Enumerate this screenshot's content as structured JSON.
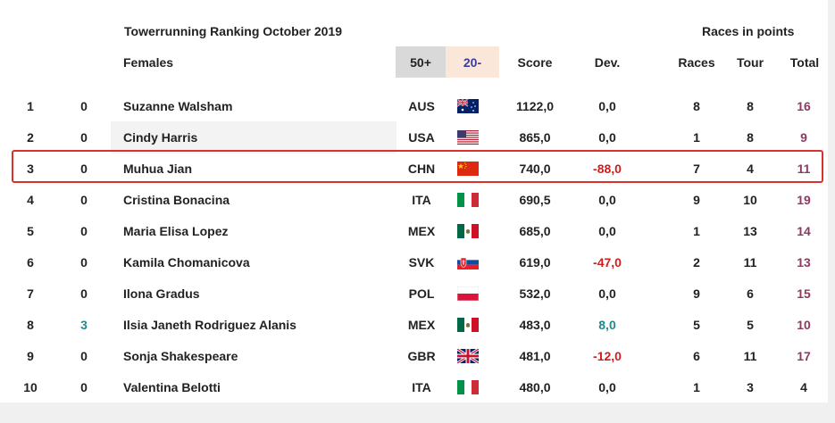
{
  "header": {
    "title": "Towerrunning Ranking October 2019",
    "races_in_points": "Races in points",
    "category": "Females",
    "col_50": "50+",
    "col_20": "20-",
    "col_score": "Score",
    "col_dev": "Dev.",
    "col_races": "Races",
    "col_tour": "Tour",
    "col_total": "Total"
  },
  "colors": {
    "accent_red": "#d31d1d",
    "teal": "#1f8a8a",
    "total_purple": "#8b3a62",
    "highlight_border": "#d9312b"
  },
  "rows": [
    {
      "rank": "1",
      "change": "0",
      "name": "Suzanne Walsham",
      "country": "AUS",
      "flag": "flag-aus",
      "score": "1122,0",
      "dev": "0,0",
      "races": "8",
      "tour": "8",
      "total": "16"
    },
    {
      "rank": "2",
      "change": "0",
      "name": "Cindy Harris",
      "country": "USA",
      "flag": "flag-usa",
      "score": "865,0",
      "dev": "0,0",
      "races": "1",
      "tour": "8",
      "total": "9"
    },
    {
      "rank": "3",
      "change": "0",
      "name": "Muhua Jian",
      "country": "CHN",
      "flag": "flag-chn",
      "score": "740,0",
      "dev": "-88,0",
      "races": "7",
      "tour": "4",
      "total": "11"
    },
    {
      "rank": "4",
      "change": "0",
      "name": "Cristina Bonacina",
      "country": "ITA",
      "flag": "flag-ita",
      "score": "690,5",
      "dev": "0,0",
      "races": "9",
      "tour": "10",
      "total": "19"
    },
    {
      "rank": "5",
      "change": "0",
      "name": "Maria Elisa Lopez",
      "country": "MEX",
      "flag": "flag-mex",
      "score": "685,0",
      "dev": "0,0",
      "races": "1",
      "tour": "13",
      "total": "14"
    },
    {
      "rank": "6",
      "change": "0",
      "name": "Kamila Chomanicova",
      "country": "SVK",
      "flag": "flag-svk",
      "score": "619,0",
      "dev": "-47,0",
      "races": "2",
      "tour": "11",
      "total": "13"
    },
    {
      "rank": "7",
      "change": "0",
      "name": "Ilona Gradus",
      "country": "POL",
      "flag": "flag-pol",
      "score": "532,0",
      "dev": "0,0",
      "races": "9",
      "tour": "6",
      "total": "15"
    },
    {
      "rank": "8",
      "change": "3",
      "name": "Ilsia Janeth Rodriguez Alanis",
      "country": "MEX",
      "flag": "flag-mex",
      "score": "483,0",
      "dev": "8,0",
      "races": "5",
      "tour": "5",
      "total": "10"
    },
    {
      "rank": "9",
      "change": "0",
      "name": "Sonja Shakespeare",
      "country": "GBR",
      "flag": "flag-gbr",
      "score": "481,0",
      "dev": "-12,0",
      "races": "6",
      "tour": "11",
      "total": "17"
    },
    {
      "rank": "10",
      "change": "0",
      "name": "Valentina Belotti",
      "country": "ITA",
      "flag": "flag-ita",
      "score": "480,0",
      "dev": "0,0",
      "races": "1",
      "tour": "3",
      "total": "4"
    }
  ]
}
